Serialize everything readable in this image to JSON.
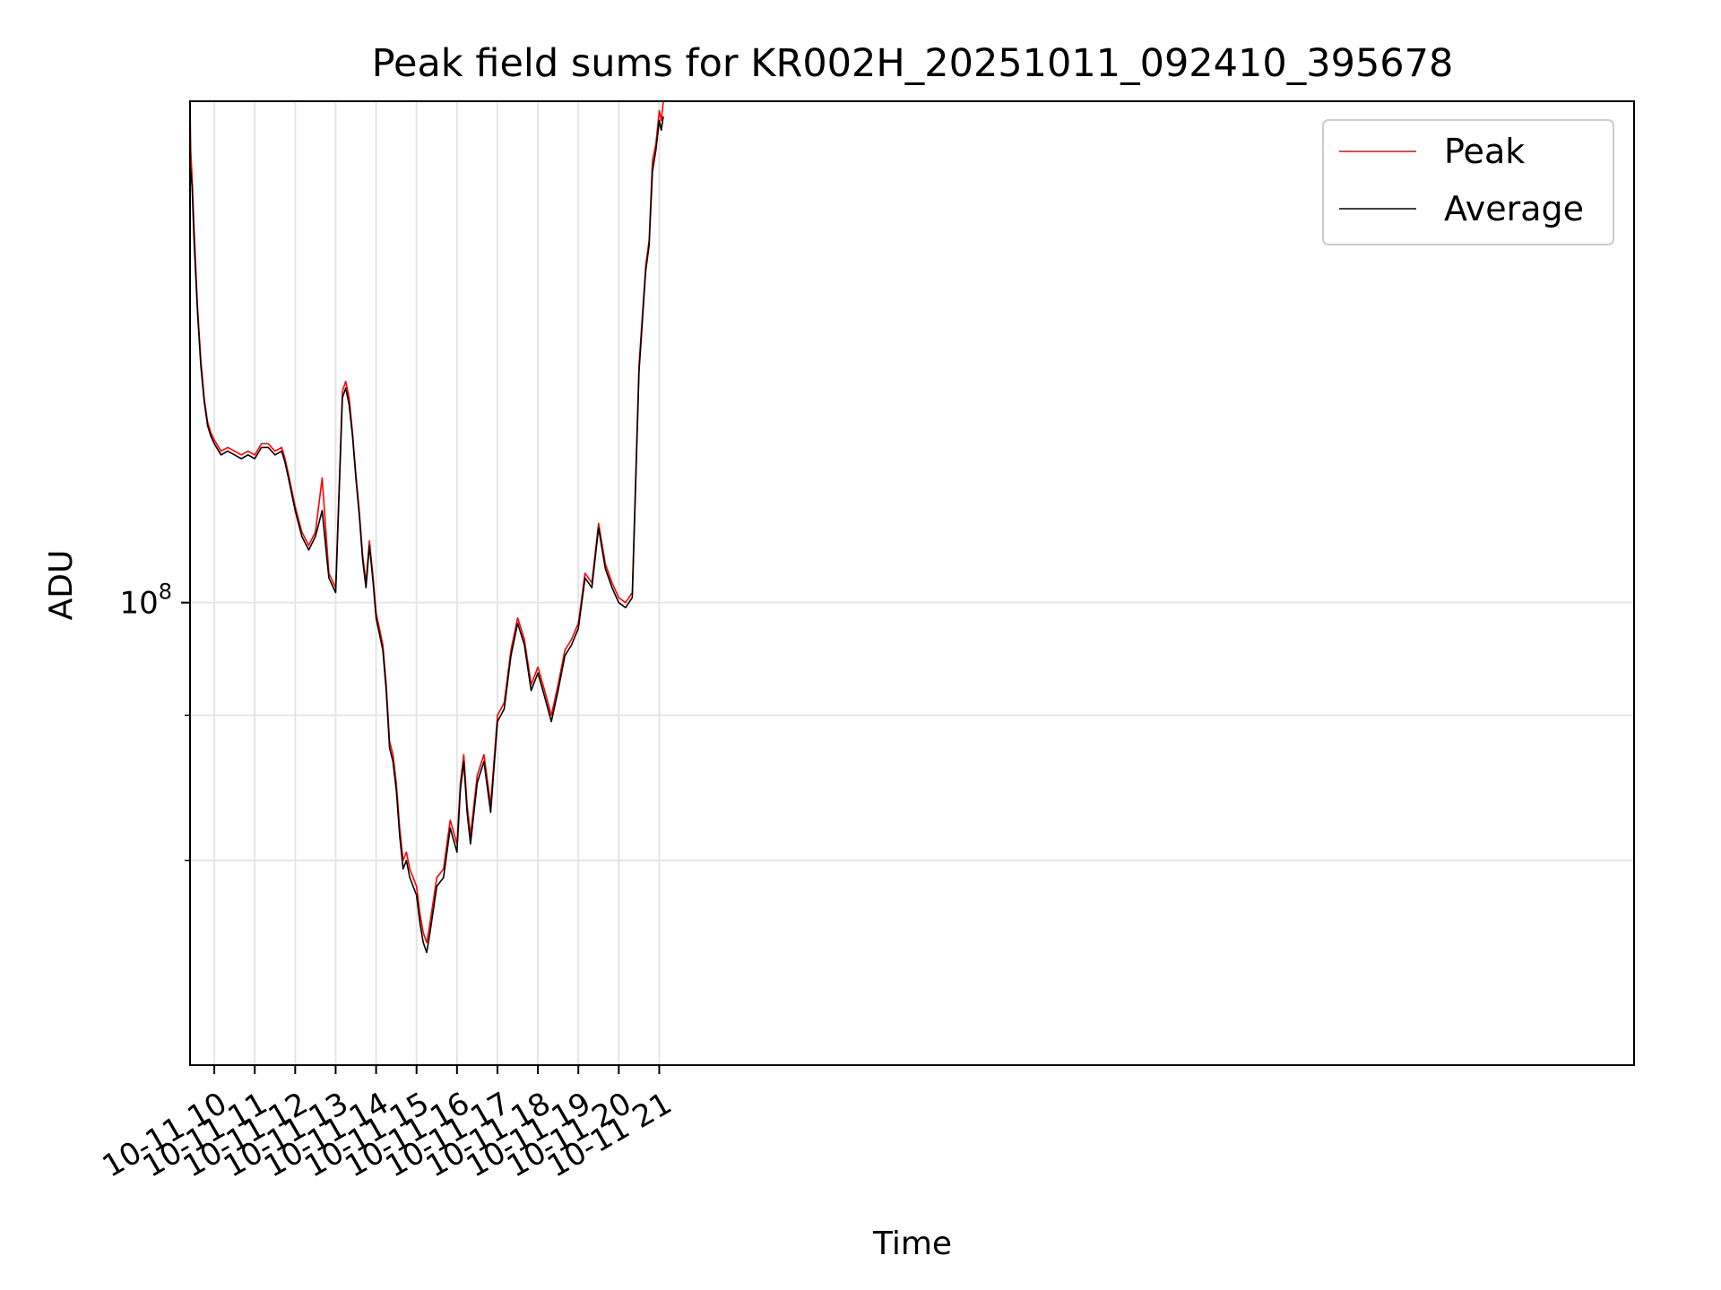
{
  "chart_data": {
    "type": "line",
    "title": "Peak field sums for KR002H_20251011_092410_395678",
    "xlabel": "Time",
    "ylabel": "ADU",
    "y_scale": "log",
    "ylim": [
      40000000,
      270000000
    ],
    "y_major_ticks": [
      {
        "value": 100000000,
        "label_base": "10",
        "label_exp": "8"
      }
    ],
    "y_minor_ticks": [
      60000000,
      80000000
    ],
    "xlim": [
      "2025-10-11 09:24",
      "2025-10-12 21:06"
    ],
    "x_tick_labels": [
      "10-11 10",
      "10-11 11",
      "10-11 12",
      "10-11 13",
      "10-11 14",
      "10-11 15",
      "10-11 16",
      "10-11 17",
      "10-11 18",
      "10-11 19",
      "10-11 20",
      "10-11 21"
    ],
    "grid": true,
    "legend": "top-right",
    "series": [
      {
        "name": "Peak",
        "color": "#ff0000",
        "times": [
          "09:24",
          "09:25",
          "09:27",
          "09:30",
          "09:35",
          "09:40",
          "09:45",
          "09:50",
          "09:55",
          "10:00",
          "10:10",
          "10:20",
          "10:30",
          "10:40",
          "10:50",
          "11:00",
          "11:10",
          "11:20",
          "11:30",
          "11:40",
          "11:45",
          "11:50",
          "12:00",
          "12:10",
          "12:20",
          "12:30",
          "12:40",
          "12:50",
          "13:00",
          "13:10",
          "13:15",
          "13:20",
          "13:25",
          "13:30",
          "13:35",
          "13:40",
          "13:45",
          "13:50",
          "13:55",
          "14:00",
          "14:05",
          "14:10",
          "14:15",
          "14:20",
          "14:25",
          "14:30",
          "14:35",
          "14:40",
          "14:45",
          "14:50",
          "14:55",
          "15:00",
          "15:05",
          "15:10",
          "15:15",
          "15:20",
          "15:30",
          "15:40",
          "15:50",
          "16:00",
          "16:05",
          "16:10",
          "16:15",
          "16:20",
          "16:30",
          "16:40",
          "16:50",
          "17:00",
          "17:10",
          "17:20",
          "17:30",
          "17:40",
          "17:50",
          "18:00",
          "18:10",
          "18:20",
          "18:30",
          "18:40",
          "18:50",
          "19:00",
          "19:10",
          "19:20",
          "19:30",
          "19:40",
          "19:50",
          "20:00",
          "20:10",
          "20:20",
          "20:30",
          "20:40",
          "20:45",
          "20:50",
          "20:55",
          "21:00",
          "21:03",
          "21:06"
        ],
        "values": [
          268000000,
          245000000,
          232000000,
          210000000,
          180000000,
          162000000,
          150000000,
          143000000,
          140000000,
          138000000,
          135000000,
          136000000,
          135000000,
          134000000,
          135000000,
          134000000,
          137000000,
          137000000,
          135000000,
          136000000,
          133000000,
          129000000,
          121000000,
          115000000,
          112000000,
          115000000,
          128000000,
          106000000,
          103000000,
          152000000,
          155000000,
          150000000,
          140000000,
          129000000,
          120000000,
          110000000,
          104000000,
          113000000,
          106000000,
          98000000,
          95000000,
          92000000,
          85000000,
          76000000,
          74000000,
          70000000,
          64000000,
          60000000,
          61000000,
          59000000,
          58000000,
          57000000,
          54000000,
          52000000,
          51000000,
          53000000,
          58000000,
          59000000,
          65000000,
          62000000,
          70000000,
          74000000,
          67000000,
          63000000,
          71000000,
          74000000,
          67000000,
          80000000,
          82000000,
          91000000,
          97000000,
          93000000,
          85000000,
          88000000,
          84000000,
          80000000,
          85000000,
          91000000,
          93000000,
          96000000,
          106000000,
          104000000,
          117000000,
          108000000,
          104000000,
          101000000,
          100000000,
          102000000,
          160000000,
          195000000,
          205000000,
          240000000,
          248000000,
          265000000,
          260000000,
          270000000
        ]
      },
      {
        "name": "Average",
        "color": "#000000",
        "times": [
          "09:24",
          "09:25",
          "09:27",
          "09:30",
          "09:35",
          "09:40",
          "09:45",
          "09:50",
          "09:55",
          "10:00",
          "10:10",
          "10:20",
          "10:30",
          "10:40",
          "10:50",
          "11:00",
          "11:10",
          "11:20",
          "11:30",
          "11:40",
          "11:45",
          "11:50",
          "12:00",
          "12:10",
          "12:20",
          "12:30",
          "12:40",
          "12:50",
          "13:00",
          "13:10",
          "13:15",
          "13:20",
          "13:25",
          "13:30",
          "13:35",
          "13:40",
          "13:45",
          "13:50",
          "13:55",
          "14:00",
          "14:05",
          "14:10",
          "14:15",
          "14:20",
          "14:25",
          "14:30",
          "14:35",
          "14:40",
          "14:45",
          "14:50",
          "14:55",
          "15:00",
          "15:05",
          "15:10",
          "15:15",
          "15:20",
          "15:30",
          "15:40",
          "15:50",
          "16:00",
          "16:05",
          "16:10",
          "16:15",
          "16:20",
          "16:30",
          "16:40",
          "16:50",
          "17:00",
          "17:10",
          "17:20",
          "17:30",
          "17:40",
          "17:50",
          "18:00",
          "18:10",
          "18:20",
          "18:30",
          "18:40",
          "18:50",
          "19:00",
          "19:10",
          "19:20",
          "19:30",
          "19:40",
          "19:50",
          "20:00",
          "20:10",
          "20:20",
          "20:30",
          "20:40",
          "20:45",
          "20:50",
          "20:55",
          "21:00",
          "21:03",
          "21:06"
        ],
        "values": [
          240000000,
          235000000,
          228000000,
          205000000,
          178000000,
          160000000,
          149000000,
          142000000,
          139000000,
          137000000,
          134000000,
          135000000,
          134000000,
          133000000,
          134000000,
          133000000,
          136000000,
          136000000,
          134000000,
          135000000,
          132000000,
          128000000,
          120000000,
          114000000,
          111000000,
          114000000,
          120000000,
          105000000,
          102000000,
          150000000,
          153000000,
          148000000,
          139000000,
          128000000,
          119000000,
          109000000,
          103000000,
          112000000,
          105000000,
          97000000,
          94000000,
          91000000,
          84000000,
          75000000,
          73000000,
          69000000,
          63000000,
          59000000,
          60000000,
          58000000,
          57000000,
          56000000,
          53000000,
          51000000,
          50000000,
          52000000,
          57000000,
          58000000,
          64000000,
          61000000,
          69000000,
          73000000,
          66000000,
          62000000,
          70000000,
          73000000,
          66000000,
          79000000,
          81000000,
          90000000,
          96000000,
          92000000,
          84000000,
          87000000,
          83000000,
          79000000,
          84000000,
          90000000,
          92000000,
          95000000,
          105000000,
          103000000,
          116000000,
          107000000,
          103000000,
          100000000,
          99000000,
          101000000,
          158000000,
          193000000,
          203000000,
          235000000,
          245000000,
          260000000,
          255000000,
          262000000
        ]
      }
    ]
  }
}
